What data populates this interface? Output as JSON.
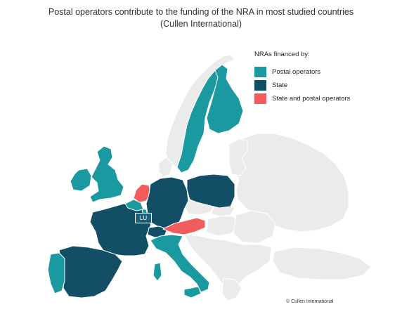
{
  "title": {
    "line1": "Postal operators contribute to the funding of the NRA in most studied countries",
    "line2": "(Cullen International)"
  },
  "legend": {
    "heading": "NRAs financed by:",
    "items": [
      {
        "label": "Postal operators",
        "color": "#1a9aa0"
      },
      {
        "label": "State",
        "color": "#124e66"
      },
      {
        "label": "State and postal operators",
        "color": "#f25c5c"
      }
    ]
  },
  "map_labels": {
    "luxembourg": "LU"
  },
  "credit": "© Cullen International",
  "colors": {
    "not_studied": "#ebebeb",
    "border": "#ffffff",
    "postal": "#1a9aa0",
    "state": "#124e66",
    "mixed": "#f25c5c"
  },
  "countries": [
    {
      "name": "Sweden",
      "category": "postal"
    },
    {
      "name": "Finland",
      "category": "postal"
    },
    {
      "name": "United Kingdom",
      "category": "postal"
    },
    {
      "name": "Ireland",
      "category": "postal"
    },
    {
      "name": "Belgium",
      "category": "postal"
    },
    {
      "name": "Luxembourg",
      "category": "postal"
    },
    {
      "name": "Italy",
      "category": "postal"
    },
    {
      "name": "Portugal",
      "category": "postal"
    },
    {
      "name": "Netherlands",
      "category": "mixed"
    },
    {
      "name": "Austria",
      "category": "mixed"
    },
    {
      "name": "France",
      "category": "state"
    },
    {
      "name": "Germany",
      "category": "state"
    },
    {
      "name": "Poland",
      "category": "state"
    },
    {
      "name": "Spain",
      "category": "state"
    },
    {
      "name": "Switzerland",
      "category": "state"
    }
  ]
}
